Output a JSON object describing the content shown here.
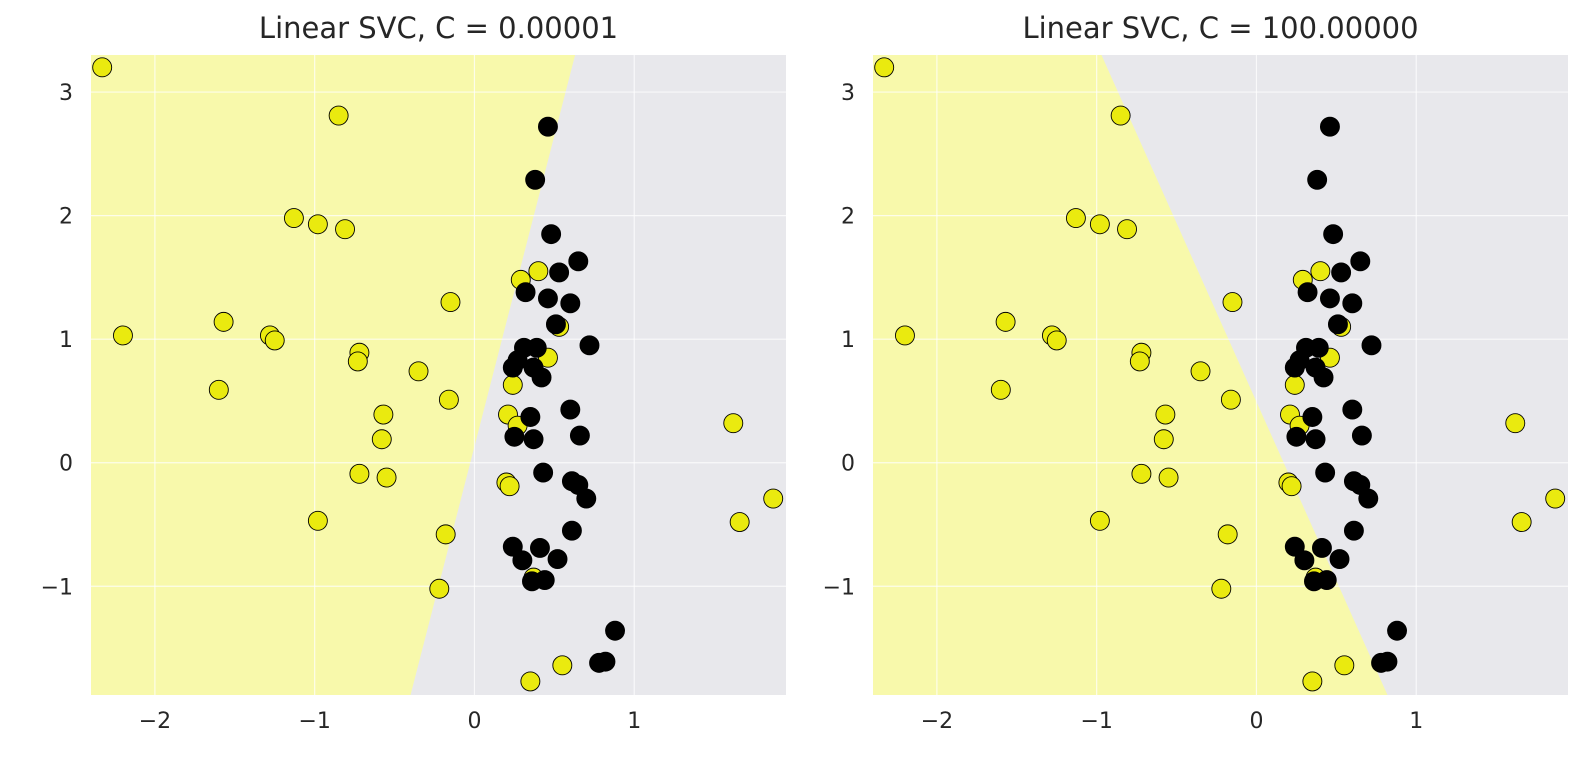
{
  "chart_data": [
    {
      "type": "scatter",
      "title": "Linear SVC, C = 0.00001",
      "xlabel": "",
      "ylabel": "",
      "xlim": [
        -2.4,
        1.95
      ],
      "ylim": [
        -1.88,
        3.3
      ],
      "xticks": [
        -2,
        -1,
        0,
        1
      ],
      "xtick_labels": [
        "−2",
        "−1",
        "0",
        "1"
      ],
      "yticks": [
        -1,
        0,
        1,
        2,
        3
      ],
      "ytick_labels": [
        "−1",
        "0",
        "1",
        "2",
        "3"
      ],
      "grid": true,
      "decision_boundary": {
        "class_left": "yellow",
        "points": [
          [
            0.63,
            3.3
          ],
          [
            -0.4,
            -1.88
          ]
        ]
      },
      "colors": {
        "region_yellow": "#f8f9ab",
        "region_gray": "#e8e8ec",
        "point_yellow": "#eaea0f",
        "point_black": "#000000",
        "edge": "#000000"
      },
      "series": [
        {
          "class": "yellow",
          "points": [
            [
              -2.33,
              3.2
            ],
            [
              -0.85,
              2.81
            ],
            [
              -1.13,
              1.98
            ],
            [
              -0.98,
              1.93
            ],
            [
              -0.81,
              1.89
            ],
            [
              -2.2,
              1.03
            ],
            [
              -1.57,
              1.14
            ],
            [
              -1.28,
              1.03
            ],
            [
              -1.25,
              0.99
            ],
            [
              -0.72,
              0.89
            ],
            [
              -0.73,
              0.82
            ],
            [
              -1.6,
              0.59
            ],
            [
              -0.35,
              0.74
            ],
            [
              -0.15,
              1.3
            ],
            [
              -0.16,
              0.51
            ],
            [
              -0.57,
              0.39
            ],
            [
              -0.58,
              0.19
            ],
            [
              -0.72,
              -0.09
            ],
            [
              -0.55,
              -0.12
            ],
            [
              -0.98,
              -0.47
            ],
            [
              -0.18,
              -0.58
            ],
            [
              -0.22,
              -1.02
            ],
            [
              0.29,
              1.48
            ],
            [
              0.4,
              1.55
            ],
            [
              0.53,
              1.1
            ],
            [
              0.46,
              0.85
            ],
            [
              0.24,
              0.63
            ],
            [
              0.21,
              0.39
            ],
            [
              0.27,
              0.3
            ],
            [
              0.2,
              -0.16
            ],
            [
              0.22,
              -0.19
            ],
            [
              1.62,
              0.32
            ],
            [
              1.66,
              -0.48
            ],
            [
              1.87,
              -0.29
            ],
            [
              0.55,
              -1.64
            ],
            [
              0.35,
              -1.77
            ],
            [
              0.37,
              -0.93
            ]
          ]
        },
        {
          "class": "black",
          "points": [
            [
              0.46,
              2.72
            ],
            [
              0.38,
              2.29
            ],
            [
              0.48,
              1.85
            ],
            [
              0.65,
              1.63
            ],
            [
              0.53,
              1.54
            ],
            [
              0.46,
              1.33
            ],
            [
              0.6,
              1.29
            ],
            [
              0.32,
              1.38
            ],
            [
              0.51,
              1.12
            ],
            [
              0.72,
              0.95
            ],
            [
              0.31,
              0.93
            ],
            [
              0.39,
              0.93
            ],
            [
              0.27,
              0.83
            ],
            [
              0.24,
              0.77
            ],
            [
              0.37,
              0.77
            ],
            [
              0.42,
              0.69
            ],
            [
              0.35,
              0.37
            ],
            [
              0.6,
              0.43
            ],
            [
              0.25,
              0.21
            ],
            [
              0.37,
              0.19
            ],
            [
              0.66,
              0.22
            ],
            [
              0.43,
              -0.08
            ],
            [
              0.61,
              -0.15
            ],
            [
              0.65,
              -0.18
            ],
            [
              0.7,
              -0.29
            ],
            [
              0.61,
              -0.55
            ],
            [
              0.24,
              -0.68
            ],
            [
              0.41,
              -0.69
            ],
            [
              0.3,
              -0.79
            ],
            [
              0.52,
              -0.78
            ],
            [
              0.36,
              -0.96
            ],
            [
              0.44,
              -0.95
            ],
            [
              0.78,
              -1.62
            ],
            [
              0.82,
              -1.61
            ],
            [
              0.88,
              -1.36
            ]
          ]
        }
      ]
    },
    {
      "type": "scatter",
      "title": "Linear SVC, C = 100.00000",
      "xlabel": "",
      "ylabel": "",
      "xlim": [
        -2.4,
        1.95
      ],
      "ylim": [
        -1.88,
        3.3
      ],
      "xticks": [
        -2,
        -1,
        0,
        1
      ],
      "xtick_labels": [
        "−2",
        "−1",
        "0",
        "1"
      ],
      "yticks": [
        -1,
        0,
        1,
        2,
        3
      ],
      "ytick_labels": [
        "−1",
        "0",
        "1",
        "2",
        "3"
      ],
      "grid": true,
      "decision_boundary": {
        "class_left": "yellow",
        "points": [
          [
            -0.97,
            3.3
          ],
          [
            0.82,
            -1.88
          ]
        ]
      },
      "colors": {
        "region_yellow": "#f8f9ab",
        "region_gray": "#e8e8ec",
        "point_yellow": "#eaea0f",
        "point_black": "#000000",
        "edge": "#000000"
      },
      "series": [
        {
          "class": "yellow",
          "points": [
            [
              -2.33,
              3.2
            ],
            [
              -0.85,
              2.81
            ],
            [
              -1.13,
              1.98
            ],
            [
              -0.98,
              1.93
            ],
            [
              -0.81,
              1.89
            ],
            [
              -2.2,
              1.03
            ],
            [
              -1.57,
              1.14
            ],
            [
              -1.28,
              1.03
            ],
            [
              -1.25,
              0.99
            ],
            [
              -0.72,
              0.89
            ],
            [
              -0.73,
              0.82
            ],
            [
              -1.6,
              0.59
            ],
            [
              -0.35,
              0.74
            ],
            [
              -0.15,
              1.3
            ],
            [
              -0.16,
              0.51
            ],
            [
              -0.57,
              0.39
            ],
            [
              -0.58,
              0.19
            ],
            [
              -0.72,
              -0.09
            ],
            [
              -0.55,
              -0.12
            ],
            [
              -0.98,
              -0.47
            ],
            [
              -0.18,
              -0.58
            ],
            [
              -0.22,
              -1.02
            ],
            [
              0.29,
              1.48
            ],
            [
              0.4,
              1.55
            ],
            [
              0.53,
              1.1
            ],
            [
              0.46,
              0.85
            ],
            [
              0.24,
              0.63
            ],
            [
              0.21,
              0.39
            ],
            [
              0.27,
              0.3
            ],
            [
              0.2,
              -0.16
            ],
            [
              0.22,
              -0.19
            ],
            [
              1.62,
              0.32
            ],
            [
              1.66,
              -0.48
            ],
            [
              1.87,
              -0.29
            ],
            [
              0.55,
              -1.64
            ],
            [
              0.35,
              -1.77
            ],
            [
              0.37,
              -0.93
            ]
          ]
        },
        {
          "class": "black",
          "points": [
            [
              0.46,
              2.72
            ],
            [
              0.38,
              2.29
            ],
            [
              0.48,
              1.85
            ],
            [
              0.65,
              1.63
            ],
            [
              0.53,
              1.54
            ],
            [
              0.46,
              1.33
            ],
            [
              0.6,
              1.29
            ],
            [
              0.32,
              1.38
            ],
            [
              0.51,
              1.12
            ],
            [
              0.72,
              0.95
            ],
            [
              0.31,
              0.93
            ],
            [
              0.39,
              0.93
            ],
            [
              0.27,
              0.83
            ],
            [
              0.24,
              0.77
            ],
            [
              0.37,
              0.77
            ],
            [
              0.42,
              0.69
            ],
            [
              0.35,
              0.37
            ],
            [
              0.6,
              0.43
            ],
            [
              0.25,
              0.21
            ],
            [
              0.37,
              0.19
            ],
            [
              0.66,
              0.22
            ],
            [
              0.43,
              -0.08
            ],
            [
              0.61,
              -0.15
            ],
            [
              0.65,
              -0.18
            ],
            [
              0.7,
              -0.29
            ],
            [
              0.61,
              -0.55
            ],
            [
              0.24,
              -0.68
            ],
            [
              0.41,
              -0.69
            ],
            [
              0.3,
              -0.79
            ],
            [
              0.52,
              -0.78
            ],
            [
              0.36,
              -0.96
            ],
            [
              0.44,
              -0.95
            ],
            [
              0.78,
              -1.62
            ],
            [
              0.82,
              -1.61
            ],
            [
              0.88,
              -1.36
            ]
          ]
        }
      ]
    }
  ]
}
